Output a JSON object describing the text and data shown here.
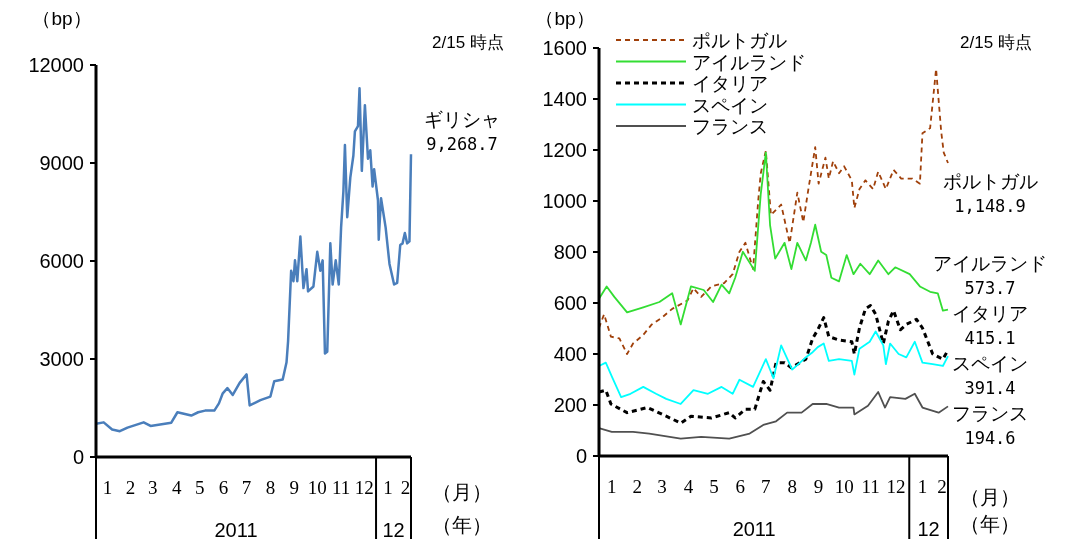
{
  "chart_data": [
    {
      "type": "line",
      "ylabel": "（bp）",
      "annotations": [
        "2/15 時点",
        "（月）",
        "（年）",
        "2011",
        "12"
      ],
      "xlim": [
        "2011-01-01",
        "2012-02-15"
      ],
      "xticks": [
        {
          "value": "2011-01-16",
          "label": "1"
        },
        {
          "value": "2011-02-15",
          "label": "2"
        },
        {
          "value": "2011-03-16",
          "label": "3"
        },
        {
          "value": "2011-04-16",
          "label": "4"
        },
        {
          "value": "2011-05-16",
          "label": "5"
        },
        {
          "value": "2011-06-16",
          "label": "6"
        },
        {
          "value": "2011-07-16",
          "label": "7"
        },
        {
          "value": "2011-08-16",
          "label": "8"
        },
        {
          "value": "2011-09-16",
          "label": "9"
        },
        {
          "value": "2011-10-16",
          "label": "10"
        },
        {
          "value": "2011-11-16",
          "label": "11"
        },
        {
          "value": "2011-12-16",
          "label": "12"
        },
        {
          "value": "2012-01-16",
          "label": "1"
        },
        {
          "value": "2012-02-08",
          "label": "2"
        }
      ],
      "ylim": [
        0,
        12000
      ],
      "yticks": [
        0,
        3000,
        6000,
        9000,
        12000
      ],
      "legend": false,
      "marker": "none",
      "series": [
        {
          "name": "ギリシャ",
          "color": "#4a7ebb",
          "line_style": "solid",
          "x": [
            "2011-01-01",
            "2011-01-11",
            "2011-01-22",
            "2011-02-01",
            "2011-02-11",
            "2011-03-04",
            "2011-03-13",
            "2011-04-09",
            "2011-04-17",
            "2011-05-05",
            "2011-05-14",
            "2011-05-23",
            "2011-06-04",
            "2011-06-10",
            "2011-06-15",
            "2011-06-21",
            "2011-06-28",
            "2011-07-07",
            "2011-07-16",
            "2011-07-20",
            "2011-08-03",
            "2011-08-16",
            "2011-08-21",
            "2011-09-01",
            "2011-09-06",
            "2011-09-08",
            "2011-09-12",
            "2011-09-15",
            "2011-09-17",
            "2011-09-20",
            "2011-09-24",
            "2011-09-28",
            "2011-10-02",
            "2011-10-04",
            "2011-10-11",
            "2011-10-16",
            "2011-10-20",
            "2011-10-23",
            "2011-10-26",
            "2011-10-29",
            "2011-11-02",
            "2011-11-05",
            "2011-11-09",
            "2011-11-13",
            "2011-11-16",
            "2011-11-19",
            "2011-11-21",
            "2011-11-24",
            "2011-11-28",
            "2011-12-02",
            "2011-12-04",
            "2011-12-08",
            "2011-12-10",
            "2011-12-13",
            "2011-12-17",
            "2011-12-21",
            "2011-12-24",
            "2011-12-27",
            "2011-12-29",
            "2012-01-03",
            "2012-01-04",
            "2012-01-07",
            "2012-01-13",
            "2012-01-18",
            "2012-01-24",
            "2012-01-28",
            "2012-02-01",
            "2012-02-04",
            "2012-02-07",
            "2012-02-10",
            "2012-02-13",
            "2012-02-15"
          ],
          "values": [
            1020,
            1060,
            840,
            790,
            900,
            1060,
            950,
            1050,
            1370,
            1270,
            1370,
            1420,
            1420,
            1640,
            1950,
            2110,
            1900,
            2270,
            2530,
            1580,
            1740,
            1850,
            2320,
            2370,
            2900,
            3540,
            5700,
            5380,
            6020,
            5380,
            6750,
            5170,
            5750,
            5070,
            5220,
            6280,
            5700,
            6020,
            3170,
            3220,
            6540,
            5280,
            6020,
            5280,
            7020,
            8130,
            9550,
            7340,
            8550,
            9230,
            9970,
            10130,
            11290,
            8760,
            10770,
            9130,
            9390,
            8280,
            8810,
            7860,
            6650,
            7920,
            7020,
            5910,
            5280,
            5330,
            6490,
            6540,
            6860,
            6540,
            6600,
            9268.7
          ],
          "value_labels": [
            null,
            null,
            null,
            null,
            null,
            null,
            null,
            null,
            null,
            null,
            null,
            null,
            null,
            null,
            null,
            null,
            null,
            null,
            null,
            null,
            null,
            null,
            null,
            null,
            null,
            null,
            null,
            null,
            null,
            null,
            null,
            null,
            null,
            null,
            null,
            null,
            null,
            null,
            null,
            null,
            null,
            null,
            null,
            null,
            null,
            null,
            null,
            null,
            null,
            null,
            null,
            null,
            null,
            null,
            null,
            null,
            null,
            null,
            null,
            null,
            null,
            null,
            null,
            null,
            null,
            null,
            null,
            null,
            null,
            null,
            null,
            "9,268.7"
          ]
        }
      ]
    },
    {
      "type": "line",
      "ylabel": "（bp）",
      "annotations": [
        "2/15 時点",
        "（月）",
        "（年）",
        "2011",
        "12"
      ],
      "xlim": [
        "2011-01-01",
        "2012-02-15"
      ],
      "xticks": [
        {
          "value": "2011-01-16",
          "label": "1"
        },
        {
          "value": "2011-02-15",
          "label": "2"
        },
        {
          "value": "2011-03-16",
          "label": "3"
        },
        {
          "value": "2011-04-16",
          "label": "4"
        },
        {
          "value": "2011-05-16",
          "label": "5"
        },
        {
          "value": "2011-06-16",
          "label": "6"
        },
        {
          "value": "2011-07-16",
          "label": "7"
        },
        {
          "value": "2011-08-16",
          "label": "8"
        },
        {
          "value": "2011-09-16",
          "label": "9"
        },
        {
          "value": "2011-10-16",
          "label": "10"
        },
        {
          "value": "2011-11-16",
          "label": "11"
        },
        {
          "value": "2011-12-16",
          "label": "12"
        },
        {
          "value": "2012-01-16",
          "label": "1"
        },
        {
          "value": "2012-02-08",
          "label": "2"
        }
      ],
      "ylim": [
        0,
        1600
      ],
      "yticks": [
        0,
        200,
        400,
        600,
        800,
        1000,
        1200,
        1400,
        1600
      ],
      "legend": "top left",
      "marker": "none",
      "series": [
        {
          "name": "ポルトガル",
          "color": "#a0400a",
          "line_style": "dashed",
          "x": [
            "2011-01-01",
            "2011-01-07",
            "2011-01-15",
            "2011-01-25",
            "2011-02-03",
            "2011-02-10",
            "2011-02-22",
            "2011-03-04",
            "2011-03-16",
            "2011-03-28",
            "2011-04-15",
            "2011-04-22",
            "2011-05-01",
            "2011-05-13",
            "2011-05-28",
            "2011-06-07",
            "2011-06-15",
            "2011-06-22",
            "2011-07-01",
            "2011-07-07",
            "2011-07-10",
            "2011-07-16",
            "2011-07-22",
            "2011-08-03",
            "2011-08-13",
            "2011-08-22",
            "2011-08-29",
            "2011-09-04",
            "2011-09-12",
            "2011-09-16",
            "2011-09-24",
            "2011-09-28",
            "2011-10-03",
            "2011-10-10",
            "2011-10-16",
            "2011-10-25",
            "2011-10-28",
            "2011-11-03",
            "2011-11-10",
            "2011-11-19",
            "2011-11-25",
            "2011-12-04",
            "2011-12-13",
            "2011-12-22",
            "2012-01-04",
            "2012-01-13",
            "2012-01-16",
            "2012-01-25",
            "2012-02-01",
            "2012-02-07",
            "2012-02-10",
            "2012-02-15"
          ],
          "values": [
            502,
            556,
            468,
            461,
            400,
            441,
            475,
            516,
            543,
            577,
            610,
            658,
            624,
            665,
            678,
            713,
            801,
            836,
            733,
            999,
            1108,
            1197,
            945,
            986,
            835,
            1033,
            917,
            1047,
            1211,
            1068,
            1170,
            1088,
            1156,
            1109,
            1136,
            1081,
            972,
            1047,
            1081,
            1047,
            1115,
            1047,
            1122,
            1088,
            1088,
            1068,
            1266,
            1286,
            1518,
            1272,
            1190,
            1148.9
          ],
          "value_labels": [
            null,
            null,
            null,
            null,
            null,
            null,
            null,
            null,
            null,
            null,
            null,
            null,
            null,
            null,
            null,
            null,
            null,
            null,
            null,
            null,
            null,
            null,
            null,
            null,
            null,
            null,
            null,
            null,
            null,
            null,
            null,
            null,
            null,
            null,
            null,
            null,
            null,
            null,
            null,
            null,
            null,
            null,
            null,
            null,
            null,
            null,
            null,
            null,
            null,
            null,
            null,
            "1,148.9"
          ]
        },
        {
          "name": "アイルランド",
          "color": "#33dd33",
          "line_style": "solid",
          "x": [
            "2011-01-01",
            "2011-01-10",
            "2011-01-19",
            "2011-02-03",
            "2011-02-22",
            "2011-03-13",
            "2011-03-28",
            "2011-04-07",
            "2011-04-19",
            "2011-05-04",
            "2011-05-15",
            "2011-05-25",
            "2011-06-03",
            "2011-06-10",
            "2011-06-19",
            "2011-07-03",
            "2011-07-10",
            "2011-07-16",
            "2011-07-21",
            "2011-07-27",
            "2011-08-07",
            "2011-08-15",
            "2011-08-22",
            "2011-09-01",
            "2011-09-07",
            "2011-09-12",
            "2011-09-19",
            "2011-09-25",
            "2011-10-01",
            "2011-10-10",
            "2011-10-19",
            "2011-10-27",
            "2011-11-04",
            "2011-11-15",
            "2011-11-25",
            "2011-12-07",
            "2011-12-15",
            "2012-01-01",
            "2012-01-13",
            "2012-01-25",
            "2012-02-03",
            "2012-02-09",
            "2012-02-15"
          ],
          "values": [
            617,
            665,
            624,
            563,
            583,
            604,
            638,
            516,
            665,
            651,
            604,
            672,
            638,
            699,
            801,
            726,
            1027,
            1190,
            904,
            774,
            836,
            733,
            836,
            767,
            836,
            907,
            801,
            788,
            699,
            685,
            788,
            713,
            754,
            713,
            767,
            713,
            740,
            713,
            665,
            644,
            638,
            570,
            573.7
          ],
          "value_labels": [
            null,
            null,
            null,
            null,
            null,
            null,
            null,
            null,
            null,
            null,
            null,
            null,
            null,
            null,
            null,
            null,
            null,
            null,
            null,
            null,
            null,
            null,
            null,
            null,
            null,
            null,
            null,
            null,
            null,
            null,
            null,
            null,
            null,
            null,
            null,
            null,
            null,
            null,
            null,
            null,
            null,
            null,
            "573.7"
          ]
        },
        {
          "name": "イタリア",
          "color": "#000000",
          "line_style": "dashed",
          "x": [
            "2011-01-01",
            "2011-01-09",
            "2011-01-15",
            "2011-02-03",
            "2011-02-27",
            "2011-03-21",
            "2011-04-07",
            "2011-04-19",
            "2011-05-13",
            "2011-06-03",
            "2011-06-10",
            "2011-06-22",
            "2011-07-03",
            "2011-07-13",
            "2011-07-21",
            "2011-07-28",
            "2011-08-07",
            "2011-08-15",
            "2011-09-01",
            "2011-09-09",
            "2011-09-15",
            "2011-09-22",
            "2011-09-28",
            "2011-10-10",
            "2011-10-25",
            "2011-10-28",
            "2011-11-03",
            "2011-11-10",
            "2011-11-16",
            "2011-11-22",
            "2011-12-01",
            "2011-12-07",
            "2011-12-13",
            "2011-12-21",
            "2011-12-28",
            "2012-01-09",
            "2012-01-16",
            "2012-01-28",
            "2012-02-09",
            "2012-02-15"
          ],
          "values": [
            251,
            258,
            204,
            170,
            190,
            156,
            129,
            156,
            149,
            170,
            149,
            183,
            183,
            292,
            258,
            366,
            366,
            346,
            380,
            461,
            495,
            543,
            468,
            455,
            448,
            400,
            502,
            577,
            590,
            556,
            441,
            529,
            570,
            495,
            516,
            536,
            502,
            400,
            380,
            415.1
          ],
          "value_labels": [
            null,
            null,
            null,
            null,
            null,
            null,
            null,
            null,
            null,
            null,
            null,
            null,
            null,
            null,
            null,
            null,
            null,
            null,
            null,
            null,
            null,
            null,
            null,
            null,
            null,
            null,
            null,
            null,
            null,
            null,
            null,
            null,
            null,
            null,
            null,
            null,
            null,
            null,
            null,
            "415.1"
          ]
        },
        {
          "name": "スペイン",
          "color": "#00ffff",
          "line_style": "solid",
          "x": [
            "2011-01-01",
            "2011-01-09",
            "2011-01-16",
            "2011-01-27",
            "2011-02-07",
            "2011-02-22",
            "2011-03-09",
            "2011-03-21",
            "2011-04-07",
            "2011-04-22",
            "2011-05-09",
            "2011-05-25",
            "2011-06-07",
            "2011-06-15",
            "2011-07-01",
            "2011-07-16",
            "2011-07-25",
            "2011-08-03",
            "2011-08-16",
            "2011-09-01",
            "2011-09-09",
            "2011-09-15",
            "2011-09-22",
            "2011-09-28",
            "2011-10-10",
            "2011-10-25",
            "2011-10-28",
            "2011-11-03",
            "2011-11-15",
            "2011-11-22",
            "2011-12-01",
            "2011-12-04",
            "2011-12-09",
            "2011-12-19",
            "2011-12-28",
            "2012-01-07",
            "2012-01-16",
            "2012-01-28",
            "2012-02-09",
            "2012-02-15"
          ],
          "values": [
            353,
            366,
            312,
            231,
            244,
            271,
            244,
            224,
            204,
            258,
            244,
            271,
            244,
            299,
            271,
            380,
            305,
            434,
            339,
            387,
            407,
            427,
            441,
            373,
            380,
            373,
            319,
            421,
            448,
            488,
            434,
            360,
            441,
            400,
            387,
            448,
            366,
            360,
            353,
            391.4
          ],
          "value_labels": [
            null,
            null,
            null,
            null,
            null,
            null,
            null,
            null,
            null,
            null,
            null,
            null,
            null,
            null,
            null,
            null,
            null,
            null,
            null,
            null,
            null,
            null,
            null,
            null,
            null,
            null,
            null,
            null,
            null,
            null,
            null,
            null,
            null,
            null,
            null,
            null,
            null,
            null,
            null,
            "391.4"
          ]
        },
        {
          "name": "フランス",
          "color": "#505050",
          "line_style": "solid",
          "x": [
            "2011-01-01",
            "2011-01-16",
            "2011-02-10",
            "2011-03-01",
            "2011-04-07",
            "2011-05-01",
            "2011-06-03",
            "2011-06-27",
            "2011-07-13",
            "2011-07-28",
            "2011-08-10",
            "2011-08-27",
            "2011-09-09",
            "2011-09-25",
            "2011-10-10",
            "2011-10-27",
            "2011-10-28",
            "2011-11-13",
            "2011-11-25",
            "2011-12-03",
            "2011-12-09",
            "2011-12-27",
            "2012-01-07",
            "2012-01-16",
            "2012-02-04",
            "2012-02-15"
          ],
          "values": [
            109,
            95,
            95,
            88,
            68,
            75,
            68,
            88,
            122,
            136,
            170,
            170,
            204,
            204,
            190,
            190,
            163,
            197,
            251,
            190,
            231,
            224,
            244,
            190,
            170,
            194.6
          ],
          "value_labels": [
            null,
            null,
            null,
            null,
            null,
            null,
            null,
            null,
            null,
            null,
            null,
            null,
            null,
            null,
            null,
            null,
            null,
            null,
            null,
            null,
            null,
            null,
            null,
            null,
            null,
            "194.6"
          ]
        }
      ]
    }
  ]
}
